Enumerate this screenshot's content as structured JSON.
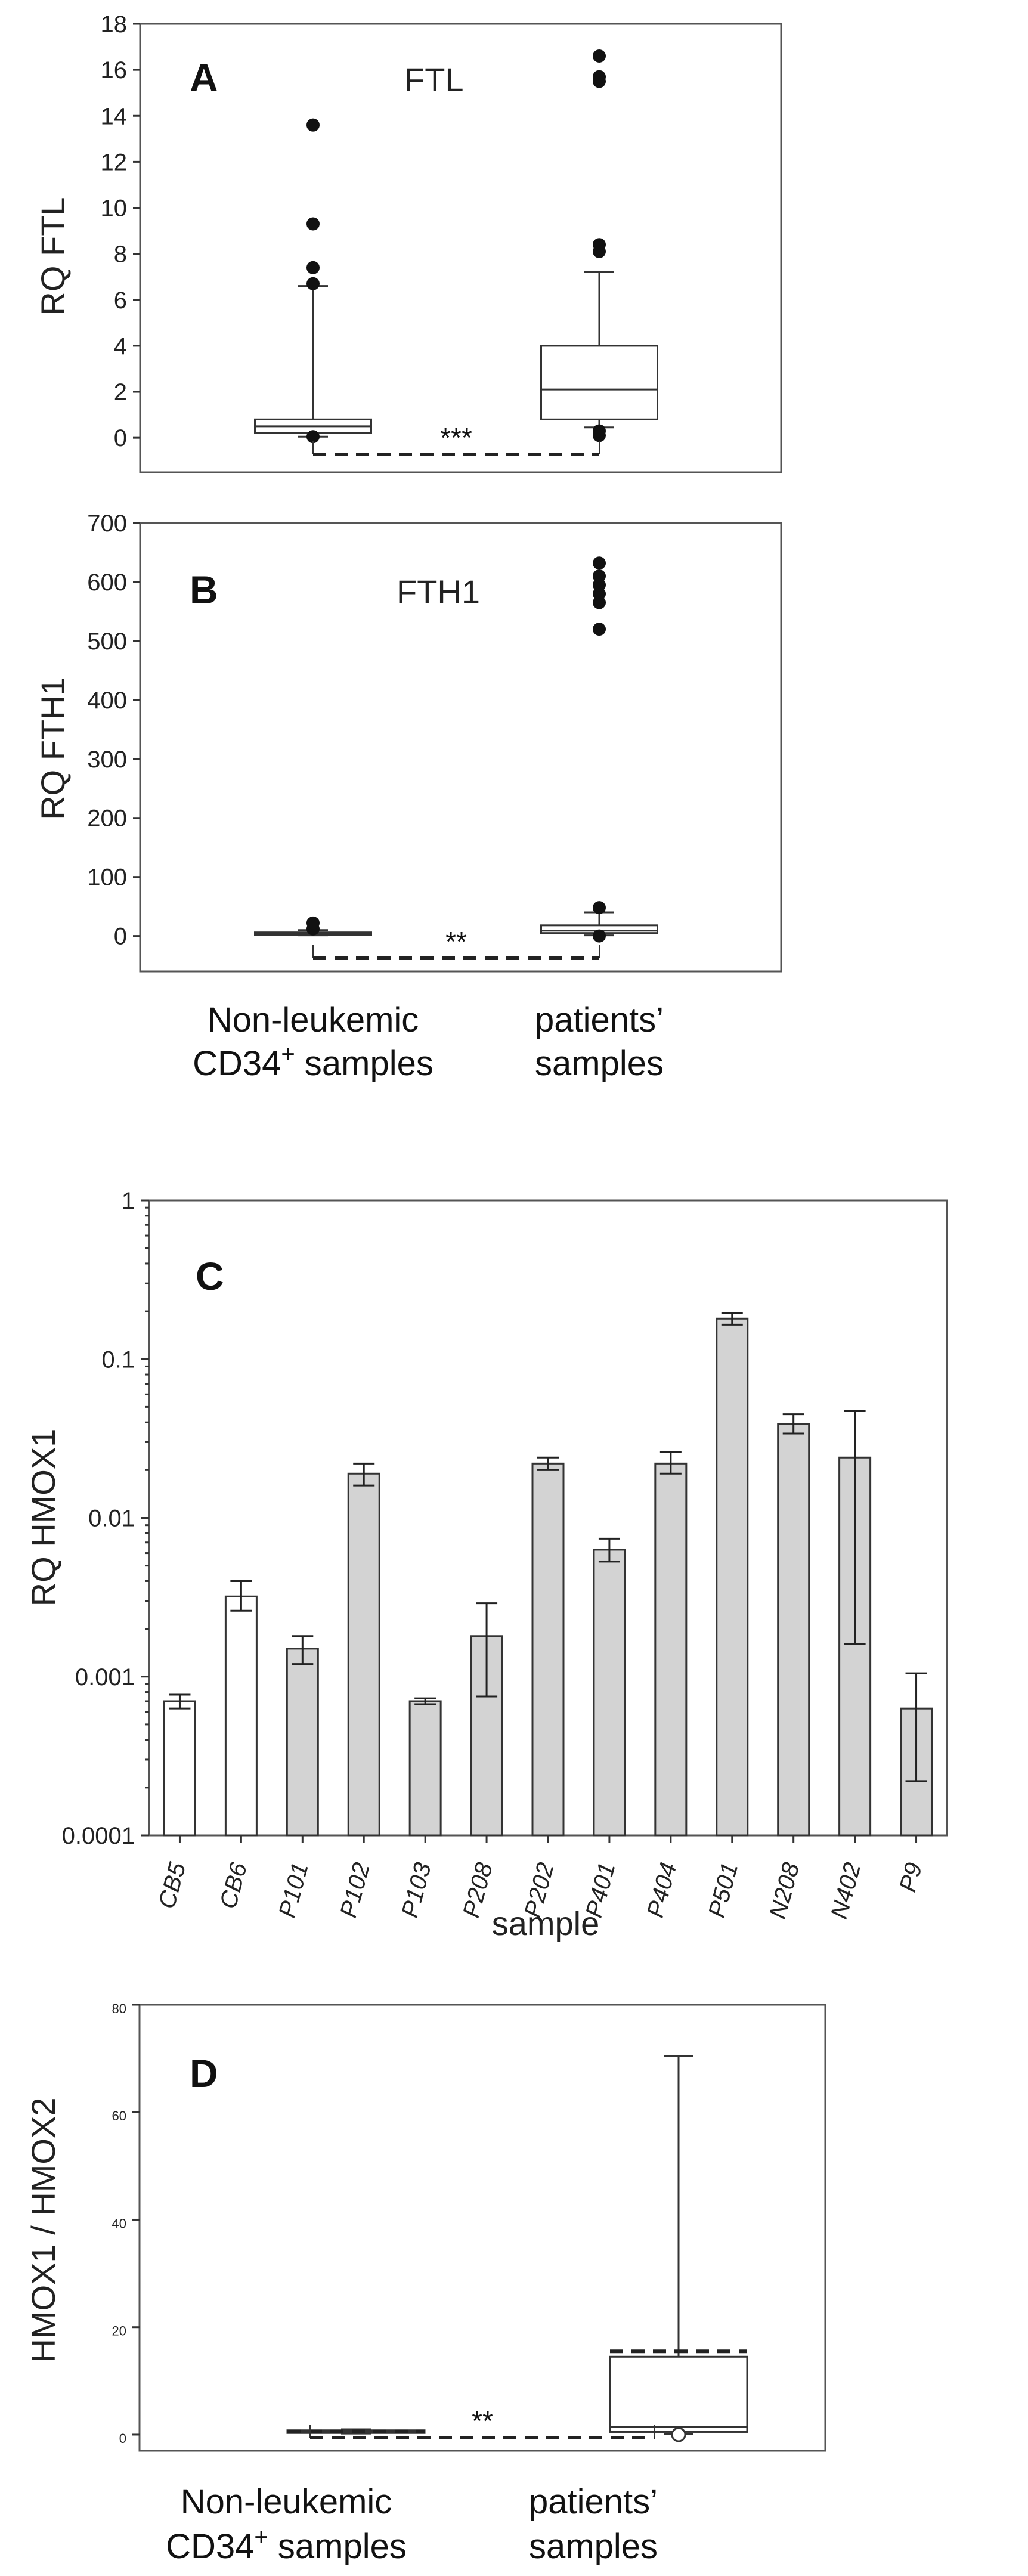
{
  "chart_data": [
    {
      "panel": "A",
      "type": "box",
      "title": "FTL",
      "ylabel": "RQ FTL",
      "ylim": [
        -1.5,
        18
      ],
      "yticks": [
        "0",
        "2",
        "4",
        "6",
        "8",
        "10",
        "12",
        "14",
        "16",
        "18"
      ],
      "groups": [
        {
          "name": "Non-leukemic CD34+ samples",
          "q1": 0.2,
          "median": 0.5,
          "q3": 0.8,
          "whisker_low": 0.05,
          "whisker_high": 6.6,
          "outliers": [
            0.05,
            6.7,
            7.4,
            9.3,
            13.6
          ]
        },
        {
          "name": "patients' samples",
          "q1": 0.8,
          "median": 2.1,
          "q3": 4.0,
          "whisker_low": 0.45,
          "whisker_high": 7.2,
          "outliers": [
            0.1,
            0.3,
            8.1,
            8.4,
            15.5,
            15.7,
            16.6
          ]
        }
      ],
      "significance": "***"
    },
    {
      "panel": "B",
      "type": "box",
      "title": "FTH1",
      "ylabel": "RQ FTH1",
      "ylim": [
        -60,
        700
      ],
      "yticks": [
        "0",
        "100",
        "200",
        "300",
        "400",
        "500",
        "600",
        "700"
      ],
      "groups": [
        {
          "name": "Non-leukemic CD34+ samples",
          "q1": 2,
          "median": 4,
          "q3": 6,
          "whisker_low": 1,
          "whisker_high": 10,
          "outliers": [
            12,
            22
          ]
        },
        {
          "name": "patients' samples",
          "q1": 5,
          "median": 9,
          "q3": 18,
          "whisker_low": 1,
          "whisker_high": 40,
          "outliers": [
            0,
            48,
            520,
            565,
            580,
            595,
            610,
            632
          ]
        }
      ],
      "significance": "**",
      "group_labels": [
        {
          "line1": "Non-leukemic",
          "line2_pre": "CD34",
          "line2_sup": "+",
          "line2_post": " samples"
        },
        {
          "line1": "patients’",
          "line2_pre": "samples",
          "line2_sup": "",
          "line2_post": ""
        }
      ]
    },
    {
      "panel": "C",
      "type": "bar",
      "scale": "log",
      "ylabel": "RQ HMOX1",
      "xlabel": "sample",
      "ylim": [
        0.0001,
        1
      ],
      "yticks": [
        "0.0001",
        "0.001",
        "0.01",
        "0.1",
        "1"
      ],
      "categories": [
        "CB5",
        "CB6",
        "P101",
        "P102",
        "P103",
        "P208",
        "P202",
        "P401",
        "P404",
        "P501",
        "N208",
        "N402",
        "P9"
      ],
      "values": [
        0.0007,
        0.0032,
        0.0015,
        0.019,
        0.0007,
        0.0018,
        0.022,
        0.0063,
        0.022,
        0.18,
        0.039,
        0.024,
        0.00063
      ],
      "err_low": [
        0.00063,
        0.0026,
        0.0012,
        0.016,
        0.00067,
        0.00075,
        0.02,
        0.0053,
        0.019,
        0.165,
        0.034,
        0.0016,
        0.00022
      ],
      "err_high": [
        0.00077,
        0.004,
        0.0018,
        0.022,
        0.00073,
        0.0029,
        0.024,
        0.0074,
        0.026,
        0.195,
        0.045,
        0.047,
        0.00105
      ],
      "fill": [
        "white",
        "white",
        "gray",
        "gray",
        "gray",
        "gray",
        "gray",
        "gray",
        "gray",
        "gray",
        "gray",
        "gray",
        "gray"
      ],
      "colors": {
        "white": "#ffffff",
        "gray": "#d3d3d3"
      }
    },
    {
      "panel": "D",
      "type": "box",
      "ylabel": "HMOX1 / HMOX2",
      "ylim": [
        -3,
        80
      ],
      "yticks": [
        "0",
        "20",
        "40",
        "60",
        "80"
      ],
      "groups": [
        {
          "name": "Non-leukemic CD34+ samples",
          "q1": 0.3,
          "median": 0.5,
          "q3": 0.8,
          "whisker_low": 0.2,
          "whisker_high": 1.0,
          "mean": 0.6,
          "outliers": []
        },
        {
          "name": "patients' samples",
          "q1": 0.5,
          "median": 1.5,
          "q3": 14.5,
          "whisker_low": 0.1,
          "whisker_high": 70.5,
          "mean": 15.5,
          "open_marker": 0.0,
          "outliers": []
        }
      ],
      "significance": "**",
      "group_labels": [
        {
          "line1": "Non-leukemic",
          "line2_pre": "CD34",
          "line2_sup": "+",
          "line2_post": " samples"
        },
        {
          "line1": "patients’",
          "line2_pre": "samples",
          "line2_sup": "",
          "line2_post": ""
        }
      ]
    }
  ]
}
